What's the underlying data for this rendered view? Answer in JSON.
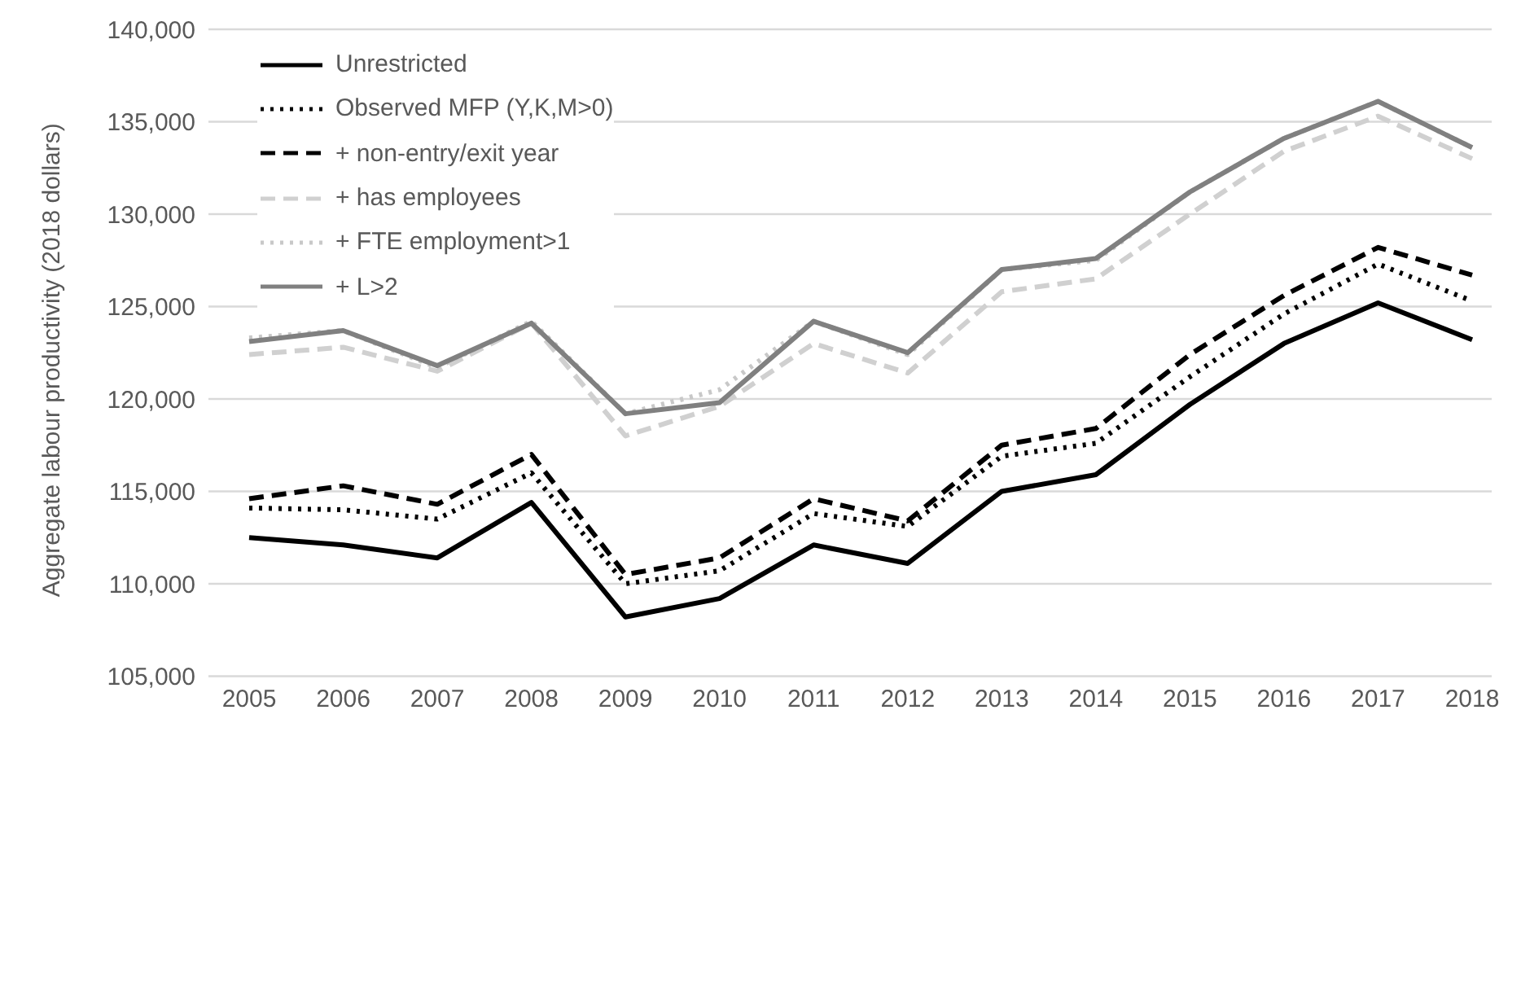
{
  "chart_data": {
    "type": "line",
    "ylabel": "Aggregate labour productivity (2018 dollars)",
    "categories": [
      "2005",
      "2006",
      "2007",
      "2008",
      "2009",
      "2010",
      "2011",
      "2012",
      "2013",
      "2014",
      "2015",
      "2016",
      "2017",
      "2018"
    ],
    "ylim": [
      105000,
      140000
    ],
    "yticks": [
      {
        "value": 105000,
        "label": "105,000"
      },
      {
        "value": 110000,
        "label": "110,000"
      },
      {
        "value": 115000,
        "label": "115,000"
      },
      {
        "value": 120000,
        "label": "120,000"
      },
      {
        "value": 125000,
        "label": "125,000"
      },
      {
        "value": 130000,
        "label": "130,000"
      },
      {
        "value": 135000,
        "label": "135,000"
      },
      {
        "value": 140000,
        "label": "140,000"
      }
    ],
    "grid": "y",
    "legend": "top left",
    "marker": "none",
    "series": [
      {
        "name": "Unrestricted",
        "color": "#000000",
        "line_style": "solid",
        "values": [
          112500,
          112100,
          111400,
          114400,
          108200,
          109200,
          112100,
          111100,
          115000,
          115900,
          119700,
          123000,
          125200,
          123200
        ]
      },
      {
        "name": "Observed MFP (Y,K,M>0)",
        "color": "#000000",
        "line_style": "dotted",
        "values": [
          114100,
          114000,
          113500,
          116000,
          110000,
          110700,
          113800,
          113100,
          116900,
          117600,
          121200,
          124600,
          127300,
          125300
        ]
      },
      {
        "name": "+ non-entry/exit year",
        "color": "#000000",
        "line_style": "dashed",
        "values": [
          114600,
          115300,
          114300,
          117000,
          110500,
          111400,
          114600,
          113400,
          117500,
          118400,
          122400,
          125600,
          128200,
          126700
        ]
      },
      {
        "name": "+ has employees",
        "color": "#d0d0d0",
        "line_style": "dashed",
        "values": [
          122400,
          122800,
          121500,
          124100,
          118000,
          119600,
          123000,
          121400,
          125800,
          126500,
          130000,
          133400,
          135300,
          133000
        ]
      },
      {
        "name": "+ FTE employment>1",
        "color": "#c8c8c8",
        "line_style": "dotted",
        "values": [
          123300,
          123700,
          121700,
          124200,
          119200,
          120500,
          124200,
          122400,
          127000,
          127500,
          131200,
          134100,
          136100,
          133600
        ]
      },
      {
        "name": "+ L>2",
        "color": "#808080",
        "line_style": "solid",
        "values": [
          123100,
          123700,
          121800,
          124100,
          119200,
          119800,
          124200,
          122500,
          127000,
          127600,
          131200,
          134100,
          136100,
          133600
        ]
      }
    ]
  }
}
